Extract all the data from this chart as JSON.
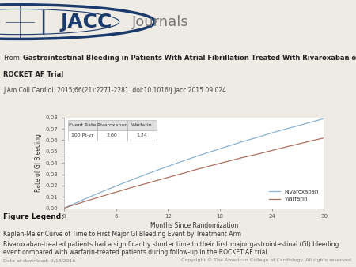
{
  "xlabel": "Months Since Randomization",
  "ylabel": "Rate of GI Bleeding",
  "xlim": [
    0,
    30
  ],
  "ylim": [
    0.0,
    0.08
  ],
  "xticks": [
    0,
    6,
    12,
    18,
    24,
    30
  ],
  "yticks": [
    0.0,
    0.01,
    0.02,
    0.03,
    0.04,
    0.05,
    0.06,
    0.07,
    0.08
  ],
  "rivaroxaban_color": "#8ab4d4",
  "warfarin_color": "#b07060",
  "bg_color": "#eeebe5",
  "header_bg": "#ffffff",
  "dark_blue": "#1a3a6b",
  "figure_legend_title": "Figure Legend:",
  "legend_text1": "Kaplan-Meier Curve of Time to First Major GI Bleeding Event by Treatment Arm",
  "legend_text2": "Rivaroxaban-treated patients had a significantly shorter time to their first major gastrointestinal (GI) bleeding event compared with warfarin-treated patients during follow-up in the ROCKET AF trial.",
  "footer_left": "Date of download: 9/18/2016",
  "footer_right": "Copyright © The American College of Cardiology. All rights reserved.",
  "table_header": [
    "Event Rate",
    "Rivaroxaban",
    "Warfarin"
  ],
  "table_row": [
    "100 Pt-yr",
    "2.00",
    "1.24"
  ],
  "from_label": "From:",
  "title_bold": "Gastrointestinal Bleeding in Patients With Atrial Fibrillation Treated With Rivaroxaban or Warfarin:",
  "title_line2": "ROCKET AF Trial",
  "title_ref": "J Am Coll Cardiol. 2015;66(21):2271-2281  doi:10.1016/j.jacc.2015.09.024",
  "jacc_text": "JACC",
  "journals_text": "Journals"
}
